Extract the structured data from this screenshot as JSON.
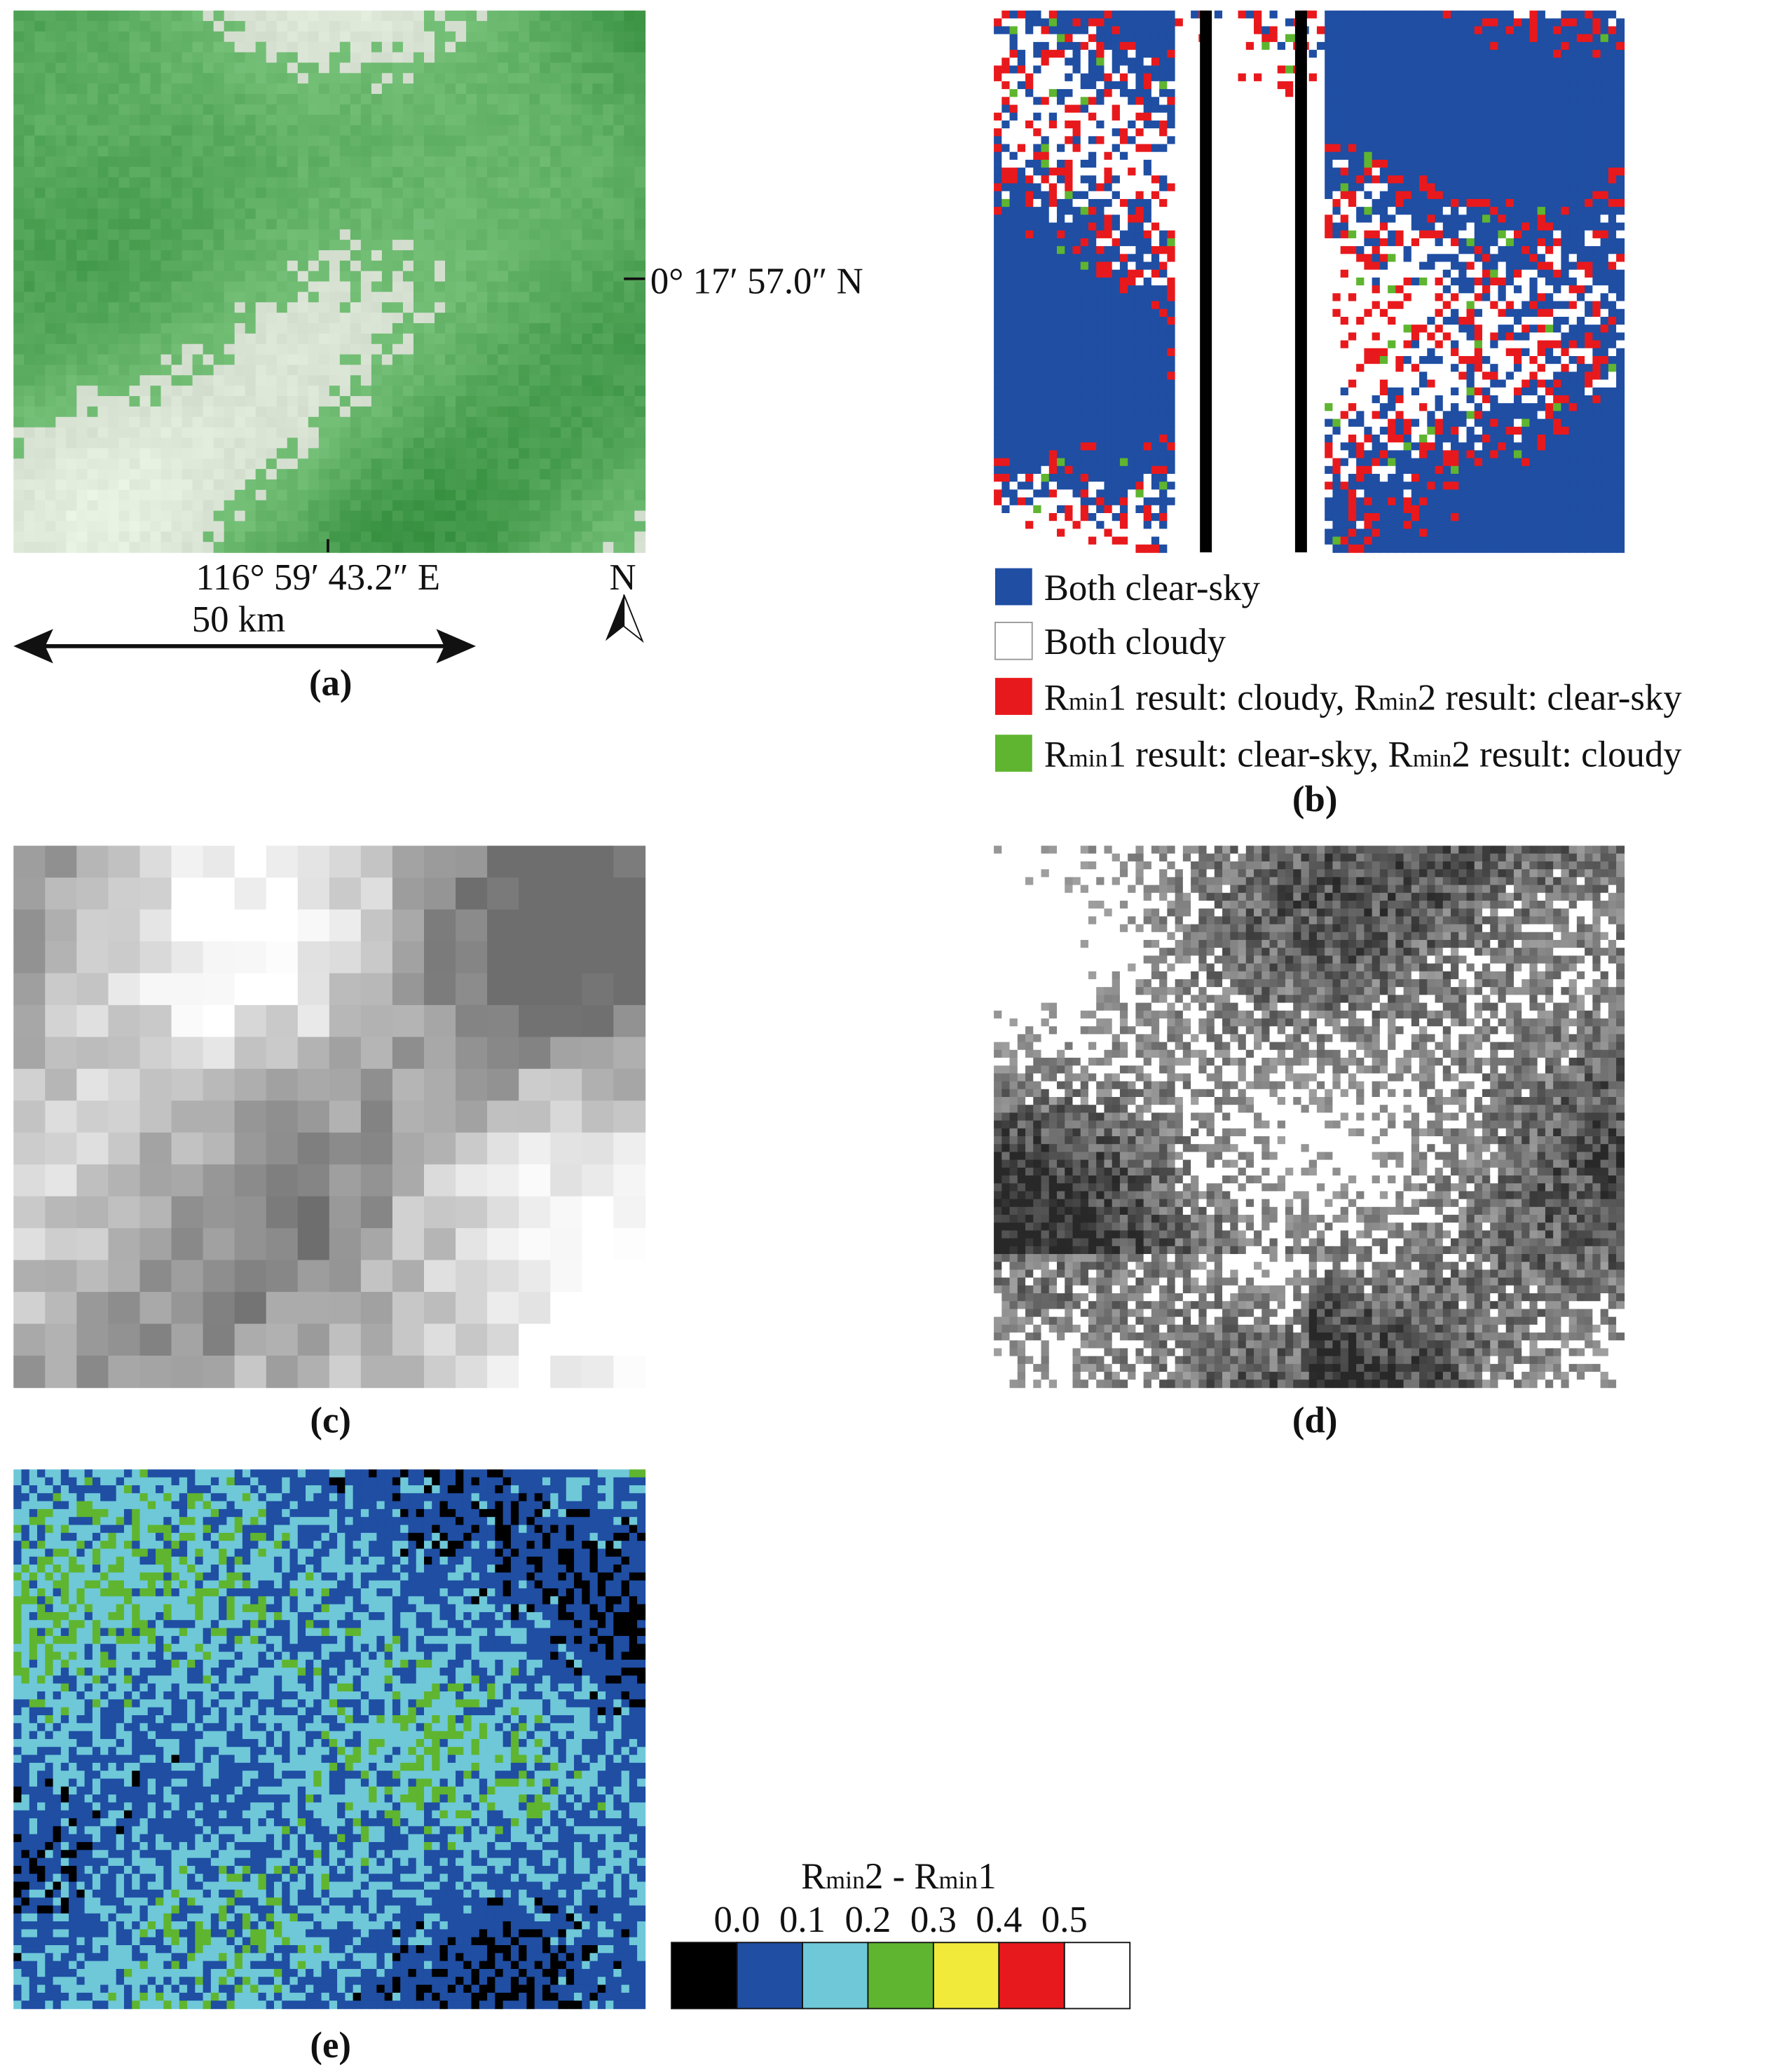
{
  "panel_a": {
    "label": "(a)",
    "latitude": "0° 17′ 57.0″ N",
    "longitude": "116° 59′ 43.2″ E",
    "north": "N",
    "scale": "50 km"
  },
  "panel_b": {
    "label": "(b)",
    "legend": [
      {
        "color": "#1f4ea3",
        "text": [
          "Both clear-sky"
        ]
      },
      {
        "color": "#ffffff",
        "text": [
          "Both cloudy"
        ]
      },
      {
        "color": "#e8191c",
        "text": [
          "R",
          "min",
          "1 result: cloudy, R",
          "min",
          "2 result: clear-sky"
        ]
      },
      {
        "color": "#5fb52f",
        "text": [
          "R",
          "min",
          "1 result: clear-sky, R",
          "min",
          "2 result: cloudy"
        ]
      }
    ]
  },
  "panel_c": {
    "label": "(c)"
  },
  "panel_d": {
    "label": "(d)"
  },
  "panel_e": {
    "label": "(e)",
    "colorbar": {
      "title": [
        "R",
        "min",
        "2 - R",
        "min",
        "1"
      ],
      "colors": [
        "#000000",
        "#1f4ea3",
        "#6ec8d8",
        "#5fb52f",
        "#f2ea3a",
        "#e8191c",
        "#ffffff"
      ],
      "ticks": [
        {
          "value": 0,
          "label": "0.0"
        },
        {
          "value": 0.1,
          "label": "0.1"
        },
        {
          "value": 0.2,
          "label": "0.2"
        },
        {
          "value": 0.3,
          "label": "0.3"
        },
        {
          "value": 0.4,
          "label": "0.4"
        },
        {
          "value": 0.5,
          "label": "0.5"
        }
      ]
    }
  }
}
